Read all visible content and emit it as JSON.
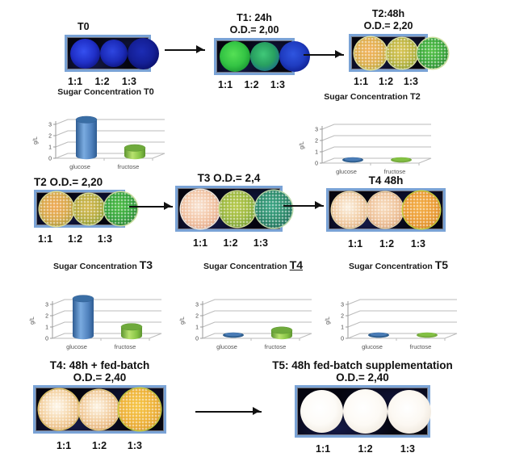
{
  "figure": {
    "background": "#ffffff"
  },
  "colors": {
    "panel_border": "#7aa3d6",
    "panel_background": "#05050f",
    "arrow": "#111111",
    "grid": "#bbbbbb",
    "axis_text": "#555555",
    "bar_blue": {
      "main": "#4f81bd",
      "edge": "#2e5c92",
      "mid": "#7aabe0",
      "top": "#3a6ea5",
      "flat": "#2e5e8e"
    },
    "bar_green": {
      "main": "#86c445",
      "edge": "#5d9430",
      "mid": "#b8e26e",
      "top": "#6faa3c",
      "flat": "#76ab3d"
    }
  },
  "plates": [
    {
      "key": "t0",
      "title": "T0",
      "od": "",
      "ratios": [
        "1:1",
        "1:2",
        "1:3"
      ],
      "circles": [
        {
          "d": 37,
          "center": "#3550f0",
          "mid": "#2030c8",
          "edge": "#0c1280",
          "rim": null,
          "speckled": false
        },
        {
          "d": 34,
          "center": "#2e46e0",
          "mid": "#1c2cba",
          "edge": "#0a1076",
          "rim": null,
          "speckled": false
        },
        {
          "d": 39,
          "center": "#1c2cb4",
          "mid": "#141f96",
          "edge": "#080c60",
          "rim": null,
          "speckled": false
        }
      ]
    },
    {
      "key": "t1",
      "title": "T1: 24h",
      "od": "O.D.= 2,00",
      "ratios": [
        "1:1",
        "1:2",
        "1:3"
      ],
      "circles": [
        {
          "d": 38,
          "center": "#55e055",
          "mid": "#34c444",
          "edge": "#159030",
          "rim": null,
          "speckled": false
        },
        {
          "d": 36,
          "center": "#40c878",
          "mid": "#28a060",
          "edge": "#1a6890",
          "rim": null,
          "speckled": false
        },
        {
          "d": 38,
          "center": "#2f55e0",
          "mid": "#1f3cc0",
          "edge": "#0c1a88",
          "rim": null,
          "speckled": false
        }
      ]
    },
    {
      "key": "t2_top",
      "title": "T2:48h",
      "od": "O.D.= 2,20",
      "ratios": [
        "1:1",
        "1:2",
        "1:3"
      ],
      "circles": [
        {
          "d": 40,
          "center": "#f2b25c",
          "mid": "#dfae4e",
          "edge": "#b8a83a",
          "rim": "#e6e49a",
          "speckled": true
        },
        {
          "d": 38,
          "center": "#d8c452",
          "mid": "#bdb542",
          "edge": "#8fa232",
          "rim": "#dce09a",
          "speckled": true
        },
        {
          "d": 38,
          "center": "#55c247",
          "mid": "#3aa83a",
          "edge": "#2a8430",
          "rim": "#cfe0a0",
          "speckled": true
        }
      ]
    },
    {
      "key": "t2",
      "title": "T2 O.D.= 2,20",
      "od": "",
      "ratios": [
        "1:1",
        "1:2",
        "1:3"
      ],
      "circles": [
        {
          "d": 42,
          "center": "#f0a854",
          "mid": "#d8a84a",
          "edge": "#a89838",
          "rim": "#e0dc90",
          "speckled": true
        },
        {
          "d": 38,
          "center": "#d4b84e",
          "mid": "#b8ac40",
          "edge": "#879c34",
          "rim": "#d8dc94",
          "speckled": true
        },
        {
          "d": 41,
          "center": "#4cbc42",
          "mid": "#35a43c",
          "edge": "#287c2e",
          "rim": "#c8dc9c",
          "speckled": true
        }
      ]
    },
    {
      "key": "t3",
      "title": "T3 O.D.= 2,4",
      "od": "",
      "ratios": [
        "1:1",
        "1:2",
        "1:3"
      ],
      "circles": [
        {
          "d": 48,
          "center": "#f8e4d4",
          "mid": "#f2c4a4",
          "edge": "#e0a486",
          "rim": "#f5ece0",
          "speckled": true
        },
        {
          "d": 44,
          "center": "#b6c94a",
          "mid": "#9cb83e",
          "edge": "#6f9c34",
          "rim": "#d0dc8c",
          "speckled": true
        },
        {
          "d": 46,
          "center": "#3aa584",
          "mid": "#2b8a6a",
          "edge": "#1e6a58",
          "rim": "#b8d8a8",
          "speckled": true
        }
      ]
    },
    {
      "key": "t4",
      "title": "T4 48h",
      "od": "",
      "ratios": [
        "1:1",
        "1:2",
        "1:3"
      ],
      "circles": [
        {
          "d": 44,
          "center": "#fbf0e0",
          "mid": "#f2cfa8",
          "edge": "#e2b184",
          "rim": "#ead8a8",
          "speckled": true
        },
        {
          "d": 44,
          "center": "#f8ddc0",
          "mid": "#efc49c",
          "edge": "#dfa87e",
          "rim": "#ecd2a8",
          "speckled": true
        },
        {
          "d": 46,
          "center": "#f4ae46",
          "mid": "#eb9c34",
          "edge": "#d88a28",
          "rim": "#cbcf3a",
          "speckled": true
        }
      ]
    },
    {
      "key": "t4_fed",
      "title": "T4: 48h + fed-batch",
      "od": "O.D.= 2,40",
      "ratios": [
        "1:1",
        "1:2",
        "1:3"
      ],
      "circles": [
        {
          "d": 50,
          "center": "#fef8ec",
          "mid": "#f4d2a2",
          "edge": "#e4b276",
          "rim": "#e2c468",
          "speckled": true
        },
        {
          "d": 49,
          "center": "#fdf4e4",
          "mid": "#f2cc9c",
          "edge": "#e2ac72",
          "rim": "#e8cc80",
          "speckled": true
        },
        {
          "d": 52,
          "center": "#f6c544",
          "mid": "#eeb238",
          "edge": "#dd9c2c",
          "rim": "#c8cc40",
          "speckled": true
        }
      ]
    },
    {
      "key": "t5",
      "title": "T5: 48h fed-batch supplementation",
      "od": "O.D.= 2,40",
      "ratios": [
        "1:1",
        "1:2",
        "1:3"
      ],
      "circles": [
        {
          "d": 53,
          "center": "#ffffff",
          "mid": "#fdfbf7",
          "edge": "#efe8dd",
          "rim": null,
          "speckled": false
        },
        {
          "d": 55,
          "center": "#ffffff",
          "mid": "#fdfaf5",
          "edge": "#efe8dd",
          "rim": null,
          "speckled": false
        },
        {
          "d": 54,
          "center": "#ffffff",
          "mid": "#fcf8f2",
          "edge": "#ece4d8",
          "rim": null,
          "speckled": false
        }
      ]
    }
  ],
  "chart_data": [
    {
      "type": "bar",
      "style": "3d-cylinder",
      "title": "Sugar Concentration T0",
      "title_prefix": "Sugar Concentration",
      "title_suffix": "T0",
      "categories": [
        "glucose",
        "fructose"
      ],
      "values": [
        3.2,
        0.7
      ],
      "ylabel": "g/L",
      "ylim": [
        0,
        3
      ],
      "yticks": [
        0,
        1,
        2,
        3
      ],
      "grid": true,
      "legend": "none"
    },
    {
      "type": "bar",
      "style": "3d-cylinder",
      "title": "Sugar Concentration T2",
      "title_prefix": "Sugar Concentration",
      "title_suffix": "T2",
      "categories": [
        "glucose",
        "fructose"
      ],
      "values": [
        0.1,
        0.2
      ],
      "ylabel": "g/L",
      "ylim": [
        0,
        3
      ],
      "yticks": [
        0,
        1,
        2,
        3
      ],
      "grid": true,
      "legend": "none"
    },
    {
      "type": "bar",
      "style": "3d-cylinder",
      "title": "Sugar Concentration T3",
      "title_prefix": "Sugar Concentration",
      "title_suffix": "T3",
      "categories": [
        "glucose",
        "fructose"
      ],
      "values": [
        3.3,
        0.8
      ],
      "ylabel": "g/L",
      "ylim": [
        0,
        3
      ],
      "yticks": [
        0,
        1,
        2,
        3
      ],
      "grid": true,
      "legend": "none"
    },
    {
      "type": "bar",
      "style": "3d-cylinder",
      "title": "Sugar Concentration T4",
      "title_prefix": "Sugar Concentration",
      "title_suffix": "T4",
      "categories": [
        "glucose",
        "fructose"
      ],
      "values": [
        0.1,
        0.5
      ],
      "ylabel": "g/L",
      "ylim": [
        0,
        3
      ],
      "yticks": [
        0,
        1,
        2,
        3
      ],
      "grid": true,
      "legend": "none"
    },
    {
      "type": "bar",
      "style": "3d-cylinder",
      "title": "Sugar Concentration T5",
      "title_prefix": "Sugar Concentration",
      "title_suffix": "T5",
      "categories": [
        "glucose",
        "fructose"
      ],
      "values": [
        0.1,
        0.15
      ],
      "ylabel": "g/L",
      "ylim": [
        0,
        3
      ],
      "yticks": [
        0,
        1,
        2,
        3
      ],
      "grid": true,
      "legend": "none"
    }
  ]
}
